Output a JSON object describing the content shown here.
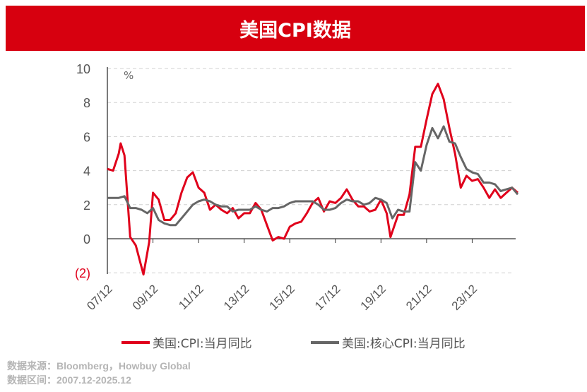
{
  "header": {
    "title": "美国CPI数据"
  },
  "chart_data": {
    "type": "line",
    "title": "美国CPI数据",
    "ylabel": "%",
    "ylim": [
      -2,
      10
    ],
    "yticks": [
      {
        "v": 10,
        "label": "10"
      },
      {
        "v": 8,
        "label": "8"
      },
      {
        "v": 6,
        "label": "6"
      },
      {
        "v": 4,
        "label": "4"
      },
      {
        "v": 2,
        "label": "2"
      },
      {
        "v": 0,
        "label": "0"
      },
      {
        "v": -2,
        "label": "(2)"
      }
    ],
    "xlim": [
      "2007.12",
      "2025.12"
    ],
    "xticks": [
      "07/12",
      "09/12",
      "11/12",
      "13/12",
      "15/12",
      "17/12",
      "19/12",
      "21/12",
      "23/12"
    ],
    "grid": "horizontal dashed",
    "legend": "bottom",
    "series": [
      {
        "name": "美国:CPI:当月同比",
        "color": "#e0001b",
        "points": [
          [
            "2007.12",
            4.1
          ],
          [
            "2008.03",
            4.0
          ],
          [
            "2008.06",
            5.0
          ],
          [
            "2008.07",
            5.6
          ],
          [
            "2008.09",
            4.9
          ],
          [
            "2008.12",
            0.1
          ],
          [
            "2009.03",
            -0.4
          ],
          [
            "2009.07",
            -2.1
          ],
          [
            "2009.10",
            -0.2
          ],
          [
            "2009.12",
            2.7
          ],
          [
            "2010.03",
            2.3
          ],
          [
            "2010.06",
            1.1
          ],
          [
            "2010.09",
            1.1
          ],
          [
            "2010.12",
            1.5
          ],
          [
            "2011.03",
            2.7
          ],
          [
            "2011.06",
            3.6
          ],
          [
            "2011.09",
            3.9
          ],
          [
            "2011.12",
            3.0
          ],
          [
            "2012.03",
            2.7
          ],
          [
            "2012.06",
            1.7
          ],
          [
            "2012.09",
            2.0
          ],
          [
            "2012.12",
            1.7
          ],
          [
            "2013.03",
            1.5
          ],
          [
            "2013.06",
            1.8
          ],
          [
            "2013.09",
            1.2
          ],
          [
            "2013.12",
            1.5
          ],
          [
            "2014.03",
            1.5
          ],
          [
            "2014.06",
            2.1
          ],
          [
            "2014.09",
            1.7
          ],
          [
            "2014.12",
            0.8
          ],
          [
            "2015.03",
            -0.1
          ],
          [
            "2015.06",
            0.1
          ],
          [
            "2015.09",
            0.0
          ],
          [
            "2015.12",
            0.7
          ],
          [
            "2016.03",
            0.9
          ],
          [
            "2016.06",
            1.0
          ],
          [
            "2016.09",
            1.5
          ],
          [
            "2016.12",
            2.1
          ],
          [
            "2017.03",
            2.4
          ],
          [
            "2017.06",
            1.6
          ],
          [
            "2017.09",
            2.2
          ],
          [
            "2017.12",
            2.1
          ],
          [
            "2018.03",
            2.4
          ],
          [
            "2018.06",
            2.9
          ],
          [
            "2018.09",
            2.3
          ],
          [
            "2018.12",
            1.9
          ],
          [
            "2019.03",
            1.9
          ],
          [
            "2019.06",
            1.6
          ],
          [
            "2019.09",
            1.7
          ],
          [
            "2019.12",
            2.3
          ],
          [
            "2020.03",
            1.5
          ],
          [
            "2020.05",
            0.1
          ],
          [
            "2020.09",
            1.4
          ],
          [
            "2020.12",
            1.4
          ],
          [
            "2021.03",
            2.6
          ],
          [
            "2021.06",
            5.4
          ],
          [
            "2021.09",
            5.4
          ],
          [
            "2021.12",
            7.0
          ],
          [
            "2022.03",
            8.5
          ],
          [
            "2022.06",
            9.1
          ],
          [
            "2022.09",
            8.2
          ],
          [
            "2022.12",
            6.5
          ],
          [
            "2023.03",
            5.0
          ],
          [
            "2023.06",
            3.0
          ],
          [
            "2023.09",
            3.7
          ],
          [
            "2023.12",
            3.4
          ],
          [
            "2024.03",
            3.5
          ],
          [
            "2024.06",
            3.0
          ],
          [
            "2024.09",
            2.4
          ],
          [
            "2024.12",
            2.9
          ],
          [
            "2025.03",
            2.4
          ],
          [
            "2025.06",
            2.7
          ],
          [
            "2025.09",
            3.0
          ],
          [
            "2025.12",
            2.7
          ]
        ]
      },
      {
        "name": "美国:核心CPI:当月同比",
        "color": "#666666",
        "points": [
          [
            "2007.12",
            2.4
          ],
          [
            "2008.03",
            2.4
          ],
          [
            "2008.06",
            2.4
          ],
          [
            "2008.09",
            2.5
          ],
          [
            "2008.12",
            1.8
          ],
          [
            "2009.03",
            1.8
          ],
          [
            "2009.06",
            1.7
          ],
          [
            "2009.09",
            1.5
          ],
          [
            "2009.12",
            1.8
          ],
          [
            "2010.03",
            1.1
          ],
          [
            "2010.06",
            0.9
          ],
          [
            "2010.09",
            0.8
          ],
          [
            "2010.12",
            0.8
          ],
          [
            "2011.03",
            1.2
          ],
          [
            "2011.06",
            1.6
          ],
          [
            "2011.09",
            2.0
          ],
          [
            "2011.12",
            2.2
          ],
          [
            "2012.03",
            2.3
          ],
          [
            "2012.06",
            2.2
          ],
          [
            "2012.09",
            2.0
          ],
          [
            "2012.12",
            1.9
          ],
          [
            "2013.03",
            1.9
          ],
          [
            "2013.06",
            1.6
          ],
          [
            "2013.09",
            1.7
          ],
          [
            "2013.12",
            1.7
          ],
          [
            "2014.03",
            1.7
          ],
          [
            "2014.06",
            1.9
          ],
          [
            "2014.09",
            1.7
          ],
          [
            "2014.12",
            1.6
          ],
          [
            "2015.03",
            1.8
          ],
          [
            "2015.06",
            1.8
          ],
          [
            "2015.09",
            1.9
          ],
          [
            "2015.12",
            2.1
          ],
          [
            "2016.03",
            2.2
          ],
          [
            "2016.06",
            2.2
          ],
          [
            "2016.09",
            2.2
          ],
          [
            "2016.12",
            2.2
          ],
          [
            "2017.03",
            2.0
          ],
          [
            "2017.06",
            1.7
          ],
          [
            "2017.09",
            1.7
          ],
          [
            "2017.12",
            1.8
          ],
          [
            "2018.03",
            2.1
          ],
          [
            "2018.06",
            2.3
          ],
          [
            "2018.09",
            2.2
          ],
          [
            "2018.12",
            2.2
          ],
          [
            "2019.03",
            2.0
          ],
          [
            "2019.06",
            2.1
          ],
          [
            "2019.09",
            2.4
          ],
          [
            "2019.12",
            2.3
          ],
          [
            "2020.03",
            2.1
          ],
          [
            "2020.06",
            1.2
          ],
          [
            "2020.09",
            1.7
          ],
          [
            "2020.12",
            1.6
          ],
          [
            "2021.03",
            1.6
          ],
          [
            "2021.06",
            4.5
          ],
          [
            "2021.09",
            4.0
          ],
          [
            "2021.12",
            5.5
          ],
          [
            "2022.03",
            6.5
          ],
          [
            "2022.06",
            5.9
          ],
          [
            "2022.09",
            6.6
          ],
          [
            "2022.12",
            5.7
          ],
          [
            "2023.03",
            5.6
          ],
          [
            "2023.06",
            4.8
          ],
          [
            "2023.09",
            4.1
          ],
          [
            "2023.12",
            3.9
          ],
          [
            "2024.03",
            3.8
          ],
          [
            "2024.06",
            3.3
          ],
          [
            "2024.09",
            3.3
          ],
          [
            "2024.12",
            3.2
          ],
          [
            "2025.03",
            2.8
          ],
          [
            "2025.06",
            2.9
          ],
          [
            "2025.09",
            3.0
          ],
          [
            "2025.12",
            2.6
          ]
        ]
      }
    ]
  },
  "footer": {
    "source": "数据来源：Bloomberg，Howbuy Global",
    "range": "数据区间：2007.12-2025.12"
  }
}
